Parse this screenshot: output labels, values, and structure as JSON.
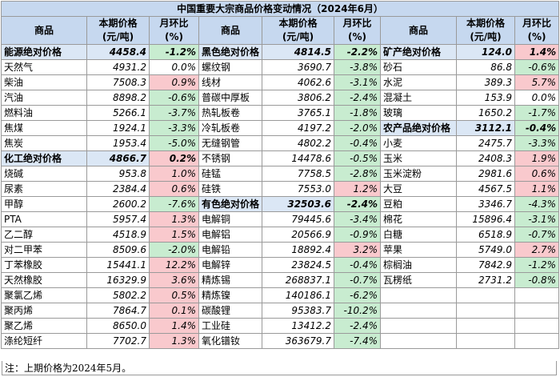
{
  "title": "中国重要大宗商品价格变动情况（2024年6月）",
  "headers": {
    "name": "商品",
    "price": "本期价格\n(元/吨)",
    "change": "月环比\n(%)"
  },
  "rows": [
    [
      {
        "n": "能源绝对价格",
        "p": "4458.4",
        "c": "-1.2%",
        "t": "down",
        "cat": true
      },
      {
        "n": "黑色绝对价格",
        "p": "4814.5",
        "c": "-2.2%",
        "t": "down",
        "cat": true
      },
      {
        "n": "矿产绝对价格",
        "p": "124.0",
        "c": "1.4%",
        "t": "up",
        "cat": true
      }
    ],
    [
      {
        "n": "天然气",
        "p": "4931.2",
        "c": "0.0%",
        "t": "flat"
      },
      {
        "n": "螺纹钢",
        "p": "3690.7",
        "c": "-3.8%",
        "t": "down"
      },
      {
        "n": "砂石",
        "p": "86.8",
        "c": "-0.6%",
        "t": "down"
      }
    ],
    [
      {
        "n": "柴油",
        "p": "7508.3",
        "c": "0.9%",
        "t": "up"
      },
      {
        "n": "线材",
        "p": "4062.6",
        "c": "-3.1%",
        "t": "down"
      },
      {
        "n": "水泥",
        "p": "389.3",
        "c": "5.7%",
        "t": "up"
      }
    ],
    [
      {
        "n": "汽油",
        "p": "8898.2",
        "c": "-0.6%",
        "t": "down"
      },
      {
        "n": "普碳中厚板",
        "p": "3806.2",
        "c": "-2.4%",
        "t": "down"
      },
      {
        "n": "混凝土",
        "p": "153.9",
        "c": "0.0%",
        "t": "flat"
      }
    ],
    [
      {
        "n": "燃料油",
        "p": "5266.1",
        "c": "-3.7%",
        "t": "down"
      },
      {
        "n": "热轧板卷",
        "p": "3765.1",
        "c": "-1.8%",
        "t": "down"
      },
      {
        "n": "玻璃",
        "p": "1650.2",
        "c": "-1.7%",
        "t": "down"
      }
    ],
    [
      {
        "n": "焦煤",
        "p": "1924.1",
        "c": "-3.3%",
        "t": "down"
      },
      {
        "n": "冷轧板卷",
        "p": "4197.2",
        "c": "-2.0%",
        "t": "down"
      },
      {
        "n": "农产品绝对价格",
        "p": "3112.1",
        "c": "-0.4%",
        "t": "down",
        "cat": true
      }
    ],
    [
      {
        "n": "焦炭",
        "p": "1953.4",
        "c": "-5.0%",
        "t": "down"
      },
      {
        "n": "无缝钢管",
        "p": "4802.2",
        "c": "-0.4%",
        "t": "down"
      },
      {
        "n": "小麦",
        "p": "2475.7",
        "c": "-3.3%",
        "t": "down"
      }
    ],
    [
      {
        "n": "化工绝对价格",
        "p": "4866.7",
        "c": "0.2%",
        "t": "up",
        "cat": true
      },
      {
        "n": "不锈钢",
        "p": "14478.6",
        "c": "-0.5%",
        "t": "down"
      },
      {
        "n": "玉米",
        "p": "2408.3",
        "c": "1.9%",
        "t": "up"
      }
    ],
    [
      {
        "n": "烧碱",
        "p": "953.8",
        "c": "1.0%",
        "t": "up"
      },
      {
        "n": "硅锰",
        "p": "7758.5",
        "c": "-2.8%",
        "t": "down"
      },
      {
        "n": "玉米淀粉",
        "p": "2981.6",
        "c": "0.6%",
        "t": "up"
      }
    ],
    [
      {
        "n": "尿素",
        "p": "2384.4",
        "c": "0.6%",
        "t": "up"
      },
      {
        "n": "硅铁",
        "p": "7553.0",
        "c": "1.2%",
        "t": "up"
      },
      {
        "n": "大豆",
        "p": "4567.5",
        "c": "1.1%",
        "t": "up"
      }
    ],
    [
      {
        "n": "甲醇",
        "p": "2600.2",
        "c": "-7.6%",
        "t": "down"
      },
      {
        "n": "有色绝对价格",
        "p": "32503.6",
        "c": "-2.4%",
        "t": "down",
        "cat": true
      },
      {
        "n": "豆粕",
        "p": "3346.7",
        "c": "-4.3%",
        "t": "down"
      }
    ],
    [
      {
        "n": "PTA",
        "p": "5957.4",
        "c": "1.3%",
        "t": "up"
      },
      {
        "n": "电解铜",
        "p": "79445.6",
        "c": "-3.4%",
        "t": "down"
      },
      {
        "n": "棉花",
        "p": "15896.4",
        "c": "-3.1%",
        "t": "down"
      }
    ],
    [
      {
        "n": "乙二醇",
        "p": "4518.9",
        "c": "1.5%",
        "t": "up"
      },
      {
        "n": "电解铝",
        "p": "20566.9",
        "c": "-0.9%",
        "t": "down"
      },
      {
        "n": "白糖",
        "p": "6518.9",
        "c": "-0.7%",
        "t": "down"
      }
    ],
    [
      {
        "n": "对二甲苯",
        "p": "8509.6",
        "c": "-2.0%",
        "t": "down"
      },
      {
        "n": "电解铅",
        "p": "18892.4",
        "c": "3.2%",
        "t": "up"
      },
      {
        "n": "苹果",
        "p": "5749.0",
        "c": "2.7%",
        "t": "up"
      }
    ],
    [
      {
        "n": "丁苯橡胶",
        "p": "15441.1",
        "c": "12.2%",
        "t": "up"
      },
      {
        "n": "电解锌",
        "p": "23824.5",
        "c": "-0.4%",
        "t": "down"
      },
      {
        "n": "棕榈油",
        "p": "7842.9",
        "c": "-1.2%",
        "t": "down"
      }
    ],
    [
      {
        "n": "天然橡胶",
        "p": "16329.9",
        "c": "3.6%",
        "t": "up"
      },
      {
        "n": "精炼锡",
        "p": "268837.1",
        "c": "-0.7%",
        "t": "down"
      },
      {
        "n": "瓦楞纸",
        "p": "2731.2",
        "c": "-0.8%",
        "t": "down"
      }
    ],
    [
      {
        "n": "聚氯乙烯",
        "p": "5802.2",
        "c": "0.5%",
        "t": "up"
      },
      {
        "n": "精炼镍",
        "p": "140186.1",
        "c": "-6.2%",
        "t": "down"
      },
      null
    ],
    [
      {
        "n": "聚丙烯",
        "p": "7864.7",
        "c": "0.1%",
        "t": "up"
      },
      {
        "n": "碳酸锂",
        "p": "95383.7",
        "c": "-10.2%",
        "t": "down"
      },
      null
    ],
    [
      {
        "n": "聚乙烯",
        "p": "8650.0",
        "c": "1.4%",
        "t": "up"
      },
      {
        "n": "工业硅",
        "p": "13412.2",
        "c": "-2.4%",
        "t": "down"
      },
      null
    ],
    [
      {
        "n": "涤纶短纤",
        "p": "7702.7",
        "c": "1.3%",
        "t": "up"
      },
      {
        "n": "氧化镨钕",
        "p": "363679.7",
        "c": "-7.4%",
        "t": "down"
      },
      null
    ]
  ],
  "note": "注：上期价格为2024年5月。",
  "colors": {
    "header_bg": "#c6d8ef",
    "up_bg": "#f9c9cd",
    "down_bg": "#c8ecd0"
  }
}
